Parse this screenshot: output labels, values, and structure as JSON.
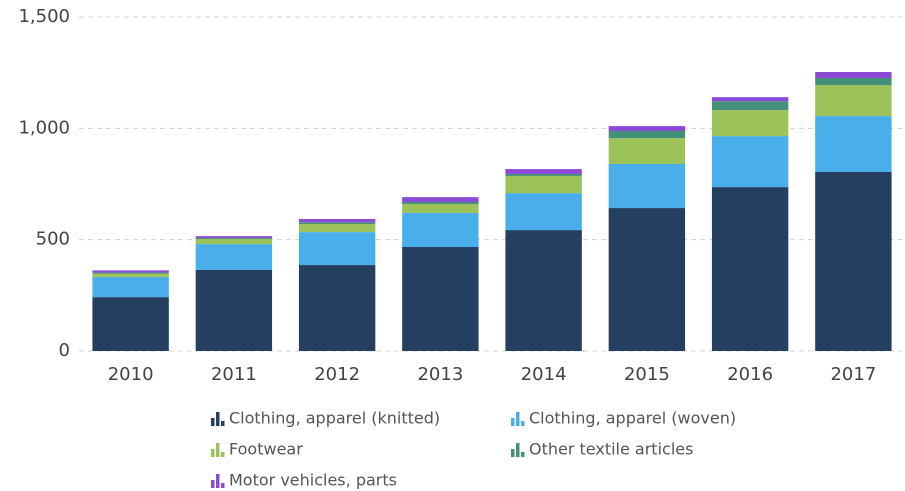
{
  "chart_data": {
    "type": "stacked_bar",
    "categories": [
      "2010",
      "2011",
      "2012",
      "2013",
      "2014",
      "2015",
      "2016",
      "2017"
    ],
    "series": [
      {
        "name": "Clothing, apparel (knitted)",
        "color": "#243f5f",
        "values": [
          242,
          364,
          386,
          467,
          543,
          642,
          736,
          804
        ]
      },
      {
        "name": "Clothing, apparel (woven)",
        "color": "#4aaeea",
        "values": [
          90,
          116,
          148,
          153,
          166,
          198,
          229,
          251
        ]
      },
      {
        "name": "Footwear",
        "color": "#9bc35a",
        "values": [
          15,
          23,
          36,
          40,
          77,
          116,
          117,
          139
        ]
      },
      {
        "name": "Other textile articles",
        "color": "#45907a",
        "values": [
          5,
          5,
          8,
          9,
          9,
          32,
          40,
          32
        ]
      },
      {
        "name": "Motor vehicles, parts",
        "color": "#8b4ad6",
        "values": [
          10,
          8,
          15,
          22,
          22,
          22,
          18,
          27
        ]
      }
    ],
    "ylim": [
      0,
      1500
    ],
    "yticks": [
      0,
      500,
      {
        "value": 1000,
        "label": "1,000"
      },
      {
        "value": 1500,
        "label": "1,500"
      }
    ],
    "grid": true
  }
}
